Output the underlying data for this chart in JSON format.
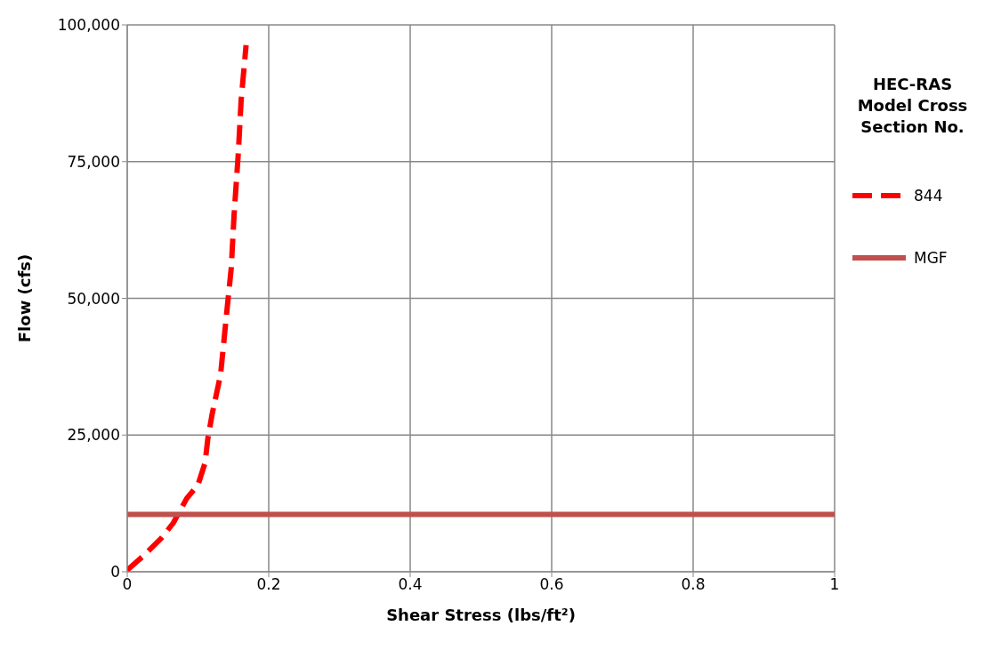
{
  "chart_data": {
    "type": "line",
    "xlabel": "Shear Stress (lbs/ft²)",
    "ylabel": "Flow (cfs)",
    "legend_title": "HEC-RAS Model Cross Section No.",
    "xlim": [
      0,
      1
    ],
    "xticks": [
      0,
      0.2,
      0.4,
      0.6,
      0.8,
      1
    ],
    "ylim": [
      0,
      100000
    ],
    "yticks": [
      0,
      {
        "value": 25000,
        "label": "25,000"
      },
      {
        "value": 50000,
        "label": "50,000"
      },
      {
        "value": 75000,
        "label": "75,000"
      },
      {
        "value": 100000,
        "label": "100,000"
      }
    ],
    "grid": true,
    "legend": "right",
    "marker": "none",
    "series": [
      {
        "name": "844",
        "color": "#ff0000",
        "line_style": "dashed",
        "x": [
          0,
          0.013,
          0.023,
          0.048,
          0.065,
          0.084,
          0.1,
          0.11,
          0.114,
          0.12,
          0.132,
          0.14,
          0.147,
          0.151,
          0.157,
          0.161,
          0.168
        ],
        "values": [
          300,
          1800,
          2900,
          6100,
          8900,
          13400,
          15900,
          19900,
          24400,
          28800,
          36100,
          46600,
          55500,
          65200,
          76500,
          86200,
          96300
        ]
      },
      {
        "name": "MGF",
        "color": "#c0504d",
        "line_style": "solid",
        "x": [
          0,
          1
        ],
        "values": [
          10500,
          10500
        ]
      }
    ]
  }
}
